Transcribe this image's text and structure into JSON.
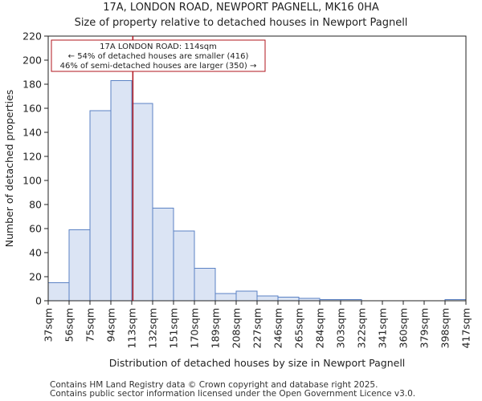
{
  "chart_data": {
    "type": "bar",
    "title": "17A, LONDON ROAD, NEWPORT PAGNELL, MK16 0HA",
    "subtitle": "Size of property relative to detached houses in Newport Pagnell",
    "xlabel": "Distribution of detached houses by size in Newport Pagnell",
    "ylabel": "Number of detached properties",
    "x_ticks": [
      "37sqm",
      "56sqm",
      "75sqm",
      "94sqm",
      "113sqm",
      "132sqm",
      "151sqm",
      "170sqm",
      "189sqm",
      "208sqm",
      "227sqm",
      "246sqm",
      "265sqm",
      "284sqm",
      "303sqm",
      "322sqm",
      "341sqm",
      "360sqm",
      "379sqm",
      "398sqm",
      "417sqm"
    ],
    "bin_edges": [
      37,
      56,
      75,
      94,
      113,
      132,
      151,
      170,
      189,
      208,
      227,
      246,
      265,
      284,
      303,
      322,
      341,
      360,
      379,
      398,
      417
    ],
    "values": [
      15,
      59,
      158,
      183,
      164,
      77,
      58,
      27,
      6,
      8,
      4,
      3,
      2,
      1,
      1,
      0,
      0,
      0,
      0,
      1
    ],
    "ylim": [
      0,
      220
    ],
    "y_ticks": [
      0,
      20,
      40,
      60,
      80,
      100,
      120,
      140,
      160,
      180,
      200,
      220
    ],
    "marker": {
      "value": 114,
      "color": "#b0141e",
      "label_lines": [
        "17A LONDON ROAD: 114sqm",
        "← 54% of detached houses are smaller (416)",
        "46% of semi-detached houses are larger (350) →"
      ]
    },
    "bar_color": "#dbe4f4",
    "bar_edge_color": "#5b82c4"
  },
  "footer": {
    "line1": "Contains HM Land Registry data © Crown copyright and database right 2025.",
    "line2": "Contains public sector information licensed under the Open Government Licence v3.0."
  }
}
